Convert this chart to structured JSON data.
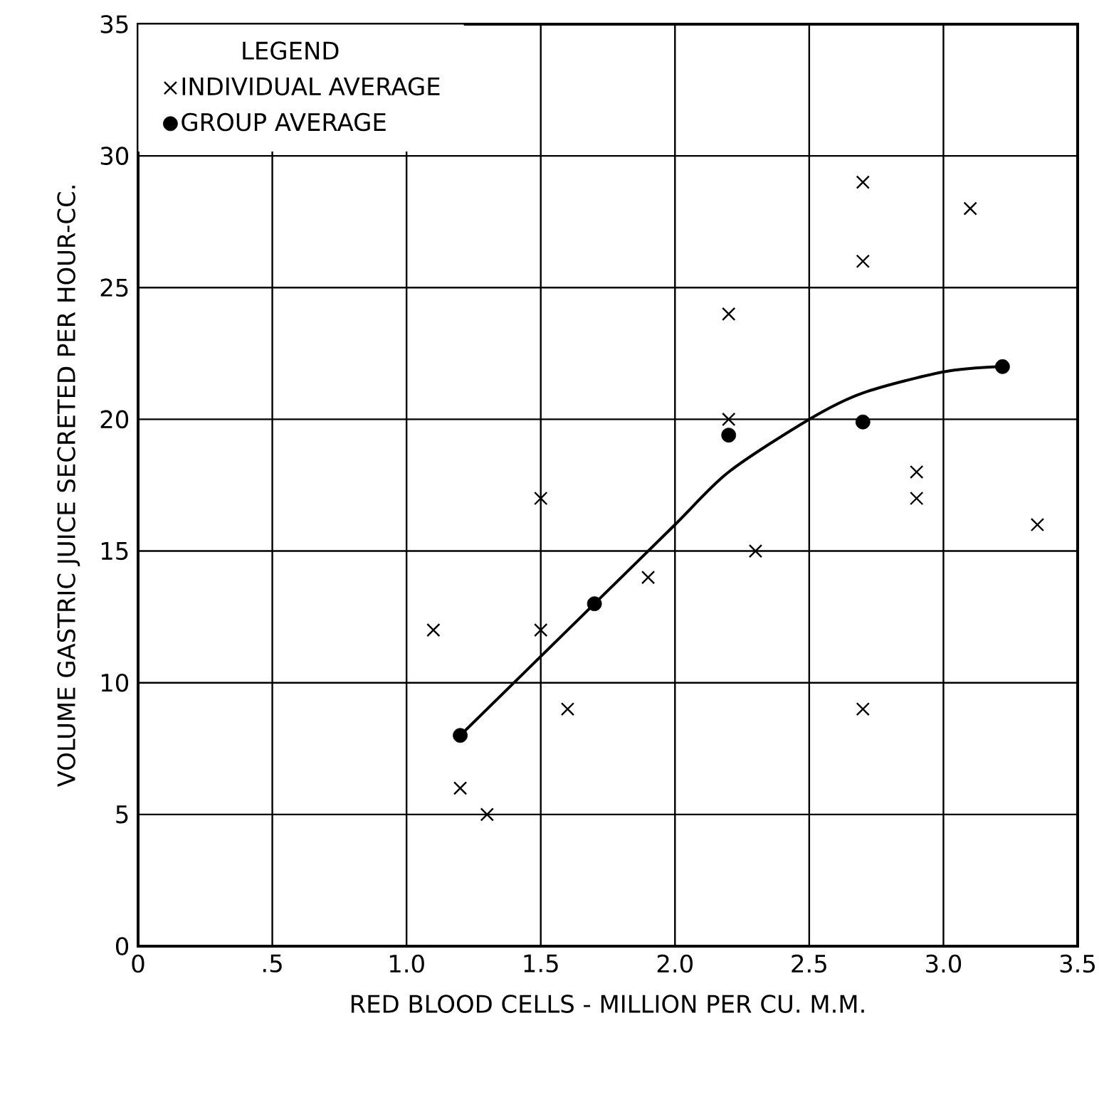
{
  "chart_data": {
    "type": "scatter",
    "xlabel": "RED BLOOD CELLS - MILLION PER CU. M.M.",
    "ylabel": "VOLUME GASTRIC JUICE SECRETED PER HOUR-CC.",
    "legend_title": "LEGEND",
    "legend": "top left",
    "grid": true,
    "xlim": [
      0,
      3.5
    ],
    "ylim": [
      0,
      35
    ],
    "xticks": [
      0,
      {
        "value": 0.5,
        "label": ".5"
      },
      {
        "value": 1.0,
        "label": "1.0"
      },
      {
        "value": 1.5,
        "label": "1.5"
      },
      {
        "value": 2.0,
        "label": "2.0"
      },
      {
        "value": 2.5,
        "label": "2.5"
      },
      {
        "value": 3.0,
        "label": "3.0"
      },
      {
        "value": 3.5,
        "label": "3.5"
      }
    ],
    "yticks": [
      0,
      5,
      10,
      15,
      20,
      25,
      30,
      35
    ],
    "series": [
      {
        "name": "INDIVIDUAL AVERAGE",
        "marker": "cross",
        "color": "#000000",
        "x": [
          1.1,
          1.2,
          1.3,
          1.5,
          1.5,
          1.6,
          1.9,
          2.2,
          2.2,
          2.3,
          2.7,
          2.7,
          2.7,
          2.9,
          2.9,
          3.1,
          3.35
        ],
        "values": [
          12,
          6,
          5,
          17,
          12,
          9,
          14,
          24,
          20,
          15,
          29,
          26,
          9,
          18,
          17,
          28,
          16
        ]
      },
      {
        "name": "GROUP AVERAGE",
        "marker": "circle",
        "color": "#000000",
        "x": [
          1.2,
          1.7,
          2.2,
          2.7,
          3.22
        ],
        "values": [
          8,
          13,
          19.4,
          19.9,
          22
        ]
      },
      {
        "type": "line",
        "marker": "none",
        "line_style": "solid",
        "color": "#000000",
        "x": [
          1.2,
          1.5,
          1.7,
          2.0,
          2.2,
          2.5,
          2.7,
          3.0,
          3.22
        ],
        "values": [
          8,
          11,
          13,
          16,
          18,
          20,
          21,
          21.8,
          22
        ]
      }
    ]
  }
}
